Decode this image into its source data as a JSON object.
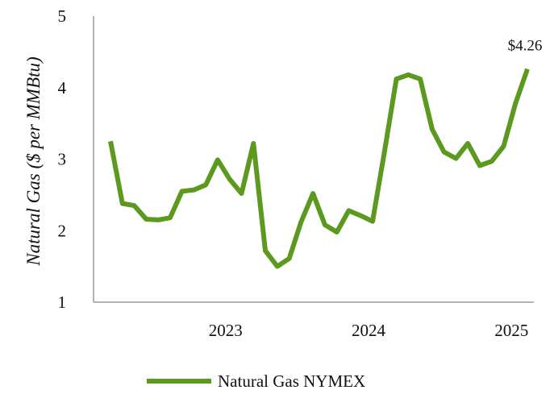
{
  "chart_data": {
    "type": "line",
    "title": "",
    "xlabel": "",
    "ylabel": "Natural Gas ($ per MMBtu)",
    "ylim": [
      1,
      5
    ],
    "yticks": [
      "1",
      "2",
      "3",
      "4",
      "5"
    ],
    "xticks": [
      "2023",
      "2024",
      "2025"
    ],
    "grid": false,
    "legend": "bottom",
    "annotation": "$4.26",
    "series": [
      {
        "name": "Natural Gas NYMEX",
        "color": "#5b9a1f",
        "x": [
          "2022-09",
          "2022-10",
          "2022-11",
          "2022-12",
          "2023-01",
          "2023-02",
          "2023-03",
          "2023-04",
          "2023-05",
          "2023-06",
          "2023-07",
          "2023-08",
          "2023-09",
          "2023-10",
          "2023-11",
          "2023-12",
          "2024-01",
          "2024-02",
          "2024-03",
          "2024-04",
          "2024-05",
          "2024-06",
          "2024-07",
          "2024-08",
          "2024-09",
          "2024-10",
          "2024-11",
          "2024-12",
          "2025-01",
          "2025-02",
          "2025-03",
          "2025-04",
          "2025-05",
          "2025-06",
          "2025-07",
          "2025-08"
        ],
        "values": [
          3.25,
          2.38,
          2.35,
          2.16,
          2.15,
          2.18,
          2.55,
          2.57,
          2.64,
          2.99,
          2.72,
          2.52,
          3.22,
          1.72,
          1.5,
          1.61,
          2.12,
          2.52,
          2.08,
          1.98,
          2.28,
          2.21,
          2.13,
          3.1,
          4.12,
          4.18,
          4.12,
          3.42,
          3.1,
          3.01,
          3.22,
          2.91,
          2.97,
          3.18,
          3.78,
          4.26
        ]
      }
    ]
  }
}
